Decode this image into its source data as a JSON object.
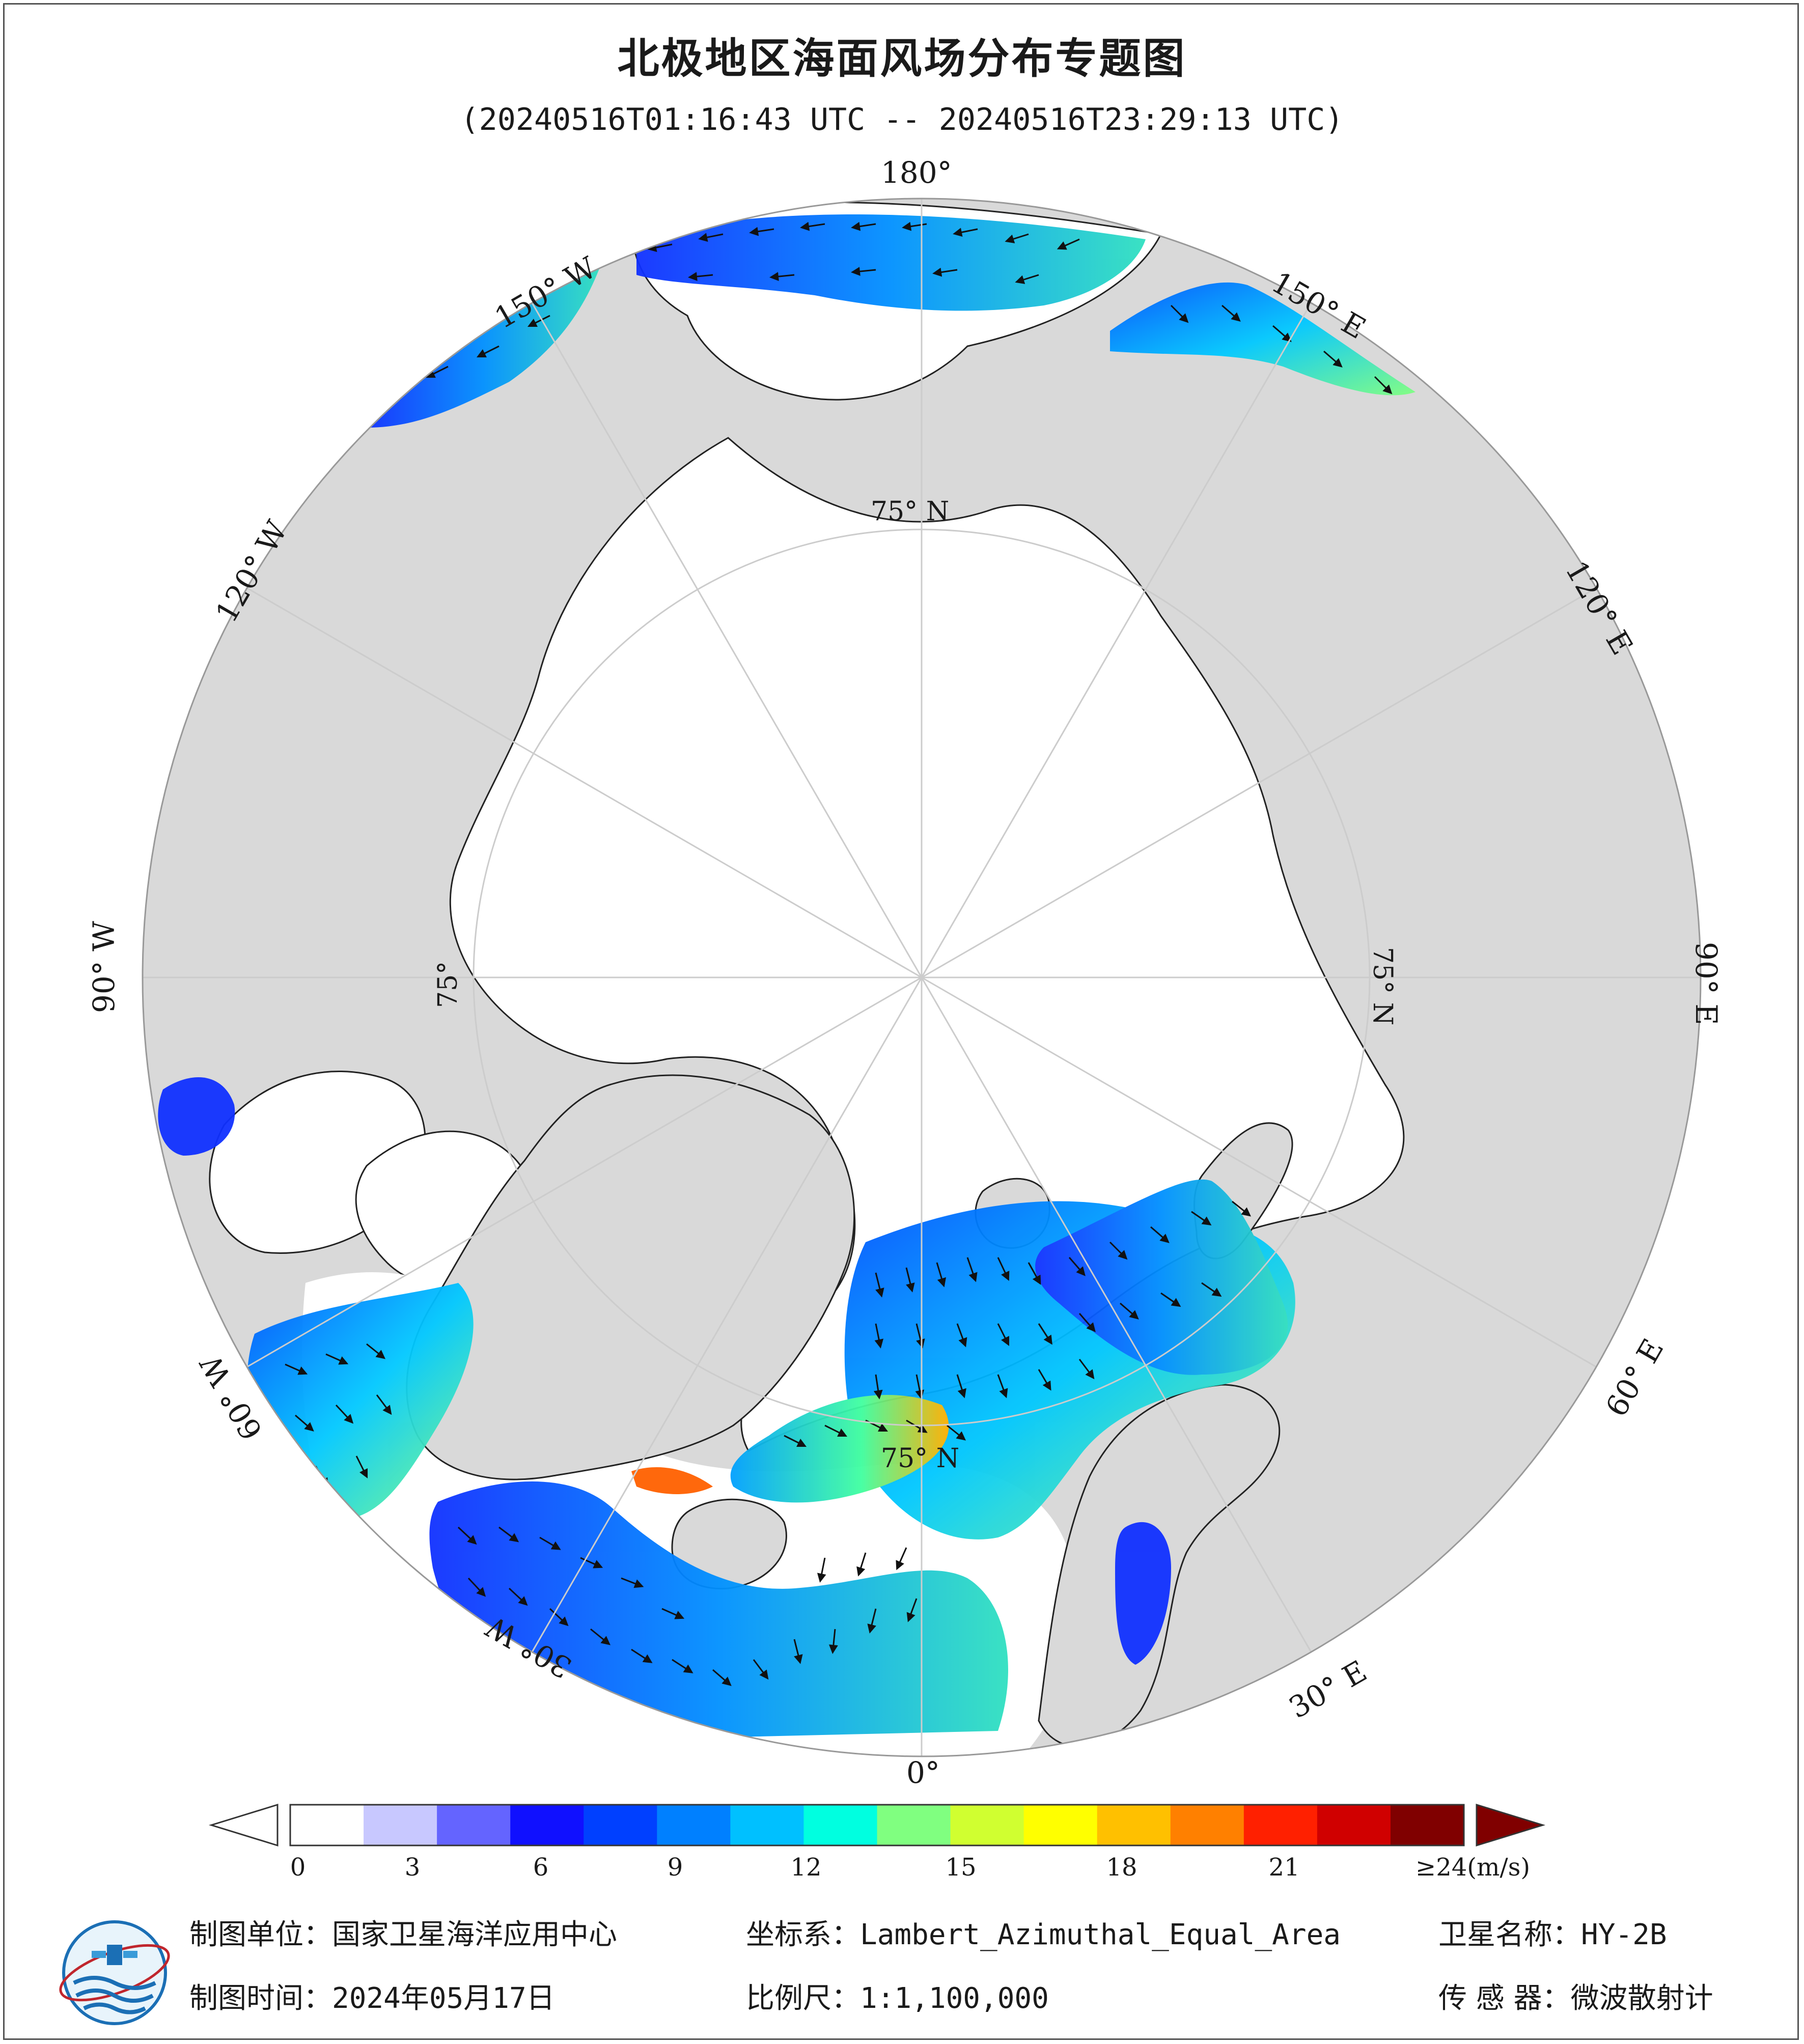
{
  "title": "北极地区海面风场分布专题图",
  "time_range": "(20240516T01:16:43 UTC -- 20240516T23:29:13 UTC)",
  "longitude_labels": [
    "180°",
    "150° E",
    "120° E",
    "90° E",
    "60° E",
    "30° E",
    "0°",
    "30° W",
    "60° W",
    "90° W",
    "120° W",
    "150° W"
  ],
  "latitude_labels": [
    "75° N",
    "75° N",
    "75° N",
    "75°"
  ],
  "colorbar": {
    "ticks": [
      "0",
      "3",
      "6",
      "9",
      "12",
      "15",
      "18",
      "21"
    ],
    "max_label": "≥24",
    "unit": "(m/s)",
    "range": [
      0,
      24
    ],
    "colors": [
      "#ffffff",
      "#c8c8ff",
      "#6464ff",
      "#1010ff",
      "#0040ff",
      "#0080ff",
      "#00c0ff",
      "#00ffe0",
      "#80ff80",
      "#d0ff30",
      "#ffff00",
      "#ffc000",
      "#ff8000",
      "#ff2000",
      "#d00000",
      "#800000"
    ]
  },
  "info": {
    "producer_label": "制图单位：",
    "producer": "国家卫星海洋应用中心",
    "date_label": "制图时间：",
    "date": "2024年05月17日",
    "crs_label": "坐标系：",
    "crs": "Lambert_Azimuthal_Equal_Area",
    "scale_label": "比例尺：",
    "scale": "1:1,100,000",
    "satellite_label": "卫星名称：",
    "satellite": "HY-2B",
    "sensor_label": "传 感 器：",
    "sensor": "微波散射计"
  },
  "colors": {
    "land": "#d9d9d9",
    "ocean": "#ffffff",
    "coast": "#222222"
  }
}
